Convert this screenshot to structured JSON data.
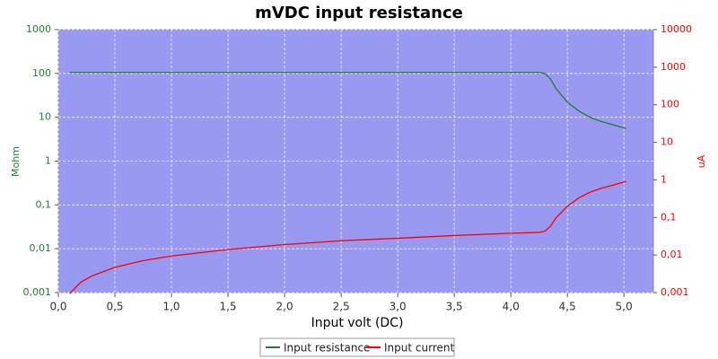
{
  "chart_data": {
    "type": "line",
    "title": "mVDC input resistance",
    "x_label": "Input volt (DC)",
    "y_label": "Mohm",
    "y2_label": "uA",
    "x": [
      0.1,
      0.2,
      0.3,
      0.5,
      0.75,
      1.0,
      1.5,
      2.0,
      2.5,
      3.0,
      3.5,
      4.0,
      4.25,
      4.3,
      4.35,
      4.4,
      4.5,
      4.6,
      4.7,
      4.8,
      4.9,
      5.02
    ],
    "series": [
      {
        "name": "Input resistance",
        "color": "#1f7f2f",
        "axis": "y",
        "values": [
          106,
          106,
          106,
          106,
          106,
          106,
          106,
          106,
          106,
          106,
          106,
          106,
          106,
          100,
          75,
          45,
          22,
          14,
          10,
          8,
          6.8,
          5.5
        ]
      },
      {
        "name": "Input current",
        "color": "#ff0000",
        "axis": "y2",
        "values": [
          0.00094,
          0.0019,
          0.0028,
          0.0047,
          0.0071,
          0.0094,
          0.014,
          0.019,
          0.024,
          0.028,
          0.033,
          0.038,
          0.04,
          0.043,
          0.058,
          0.098,
          0.2,
          0.33,
          0.47,
          0.6,
          0.72,
          0.91
        ]
      }
    ],
    "xlim": [
      0,
      5.26
    ],
    "xticks": [
      {
        "value": 0,
        "label": "0,0"
      },
      {
        "value": 0.5,
        "label": "0,5"
      },
      {
        "value": 1,
        "label": "1,0"
      },
      {
        "value": 1.5,
        "label": "1,5"
      },
      {
        "value": 2,
        "label": "2,0"
      },
      {
        "value": 2.5,
        "label": "2,5"
      },
      {
        "value": 3,
        "label": "3,0"
      },
      {
        "value": 3.5,
        "label": "3,5"
      },
      {
        "value": 4,
        "label": "4,0"
      },
      {
        "value": 4.5,
        "label": "4,5"
      },
      {
        "value": 5,
        "label": "5,0"
      }
    ],
    "ylim": [
      0.001,
      1000
    ],
    "yscale": "log",
    "yticks": [
      {
        "value": 0.001,
        "label": "0,001"
      },
      {
        "value": 0.01,
        "label": "0,01"
      },
      {
        "value": 0.1,
        "label": "0,1"
      },
      1,
      10,
      100,
      1000
    ],
    "y2lim": [
      0.001,
      10000
    ],
    "y2scale": "log",
    "y2ticks": [
      {
        "value": 0.001,
        "label": "0,001"
      },
      {
        "value": 0.01,
        "label": "0,01"
      },
      {
        "value": 0.1,
        "label": "0,1"
      },
      1,
      10,
      100,
      1000,
      10000
    ],
    "grid": true,
    "legend": "bottom",
    "background": "#9999f2"
  }
}
